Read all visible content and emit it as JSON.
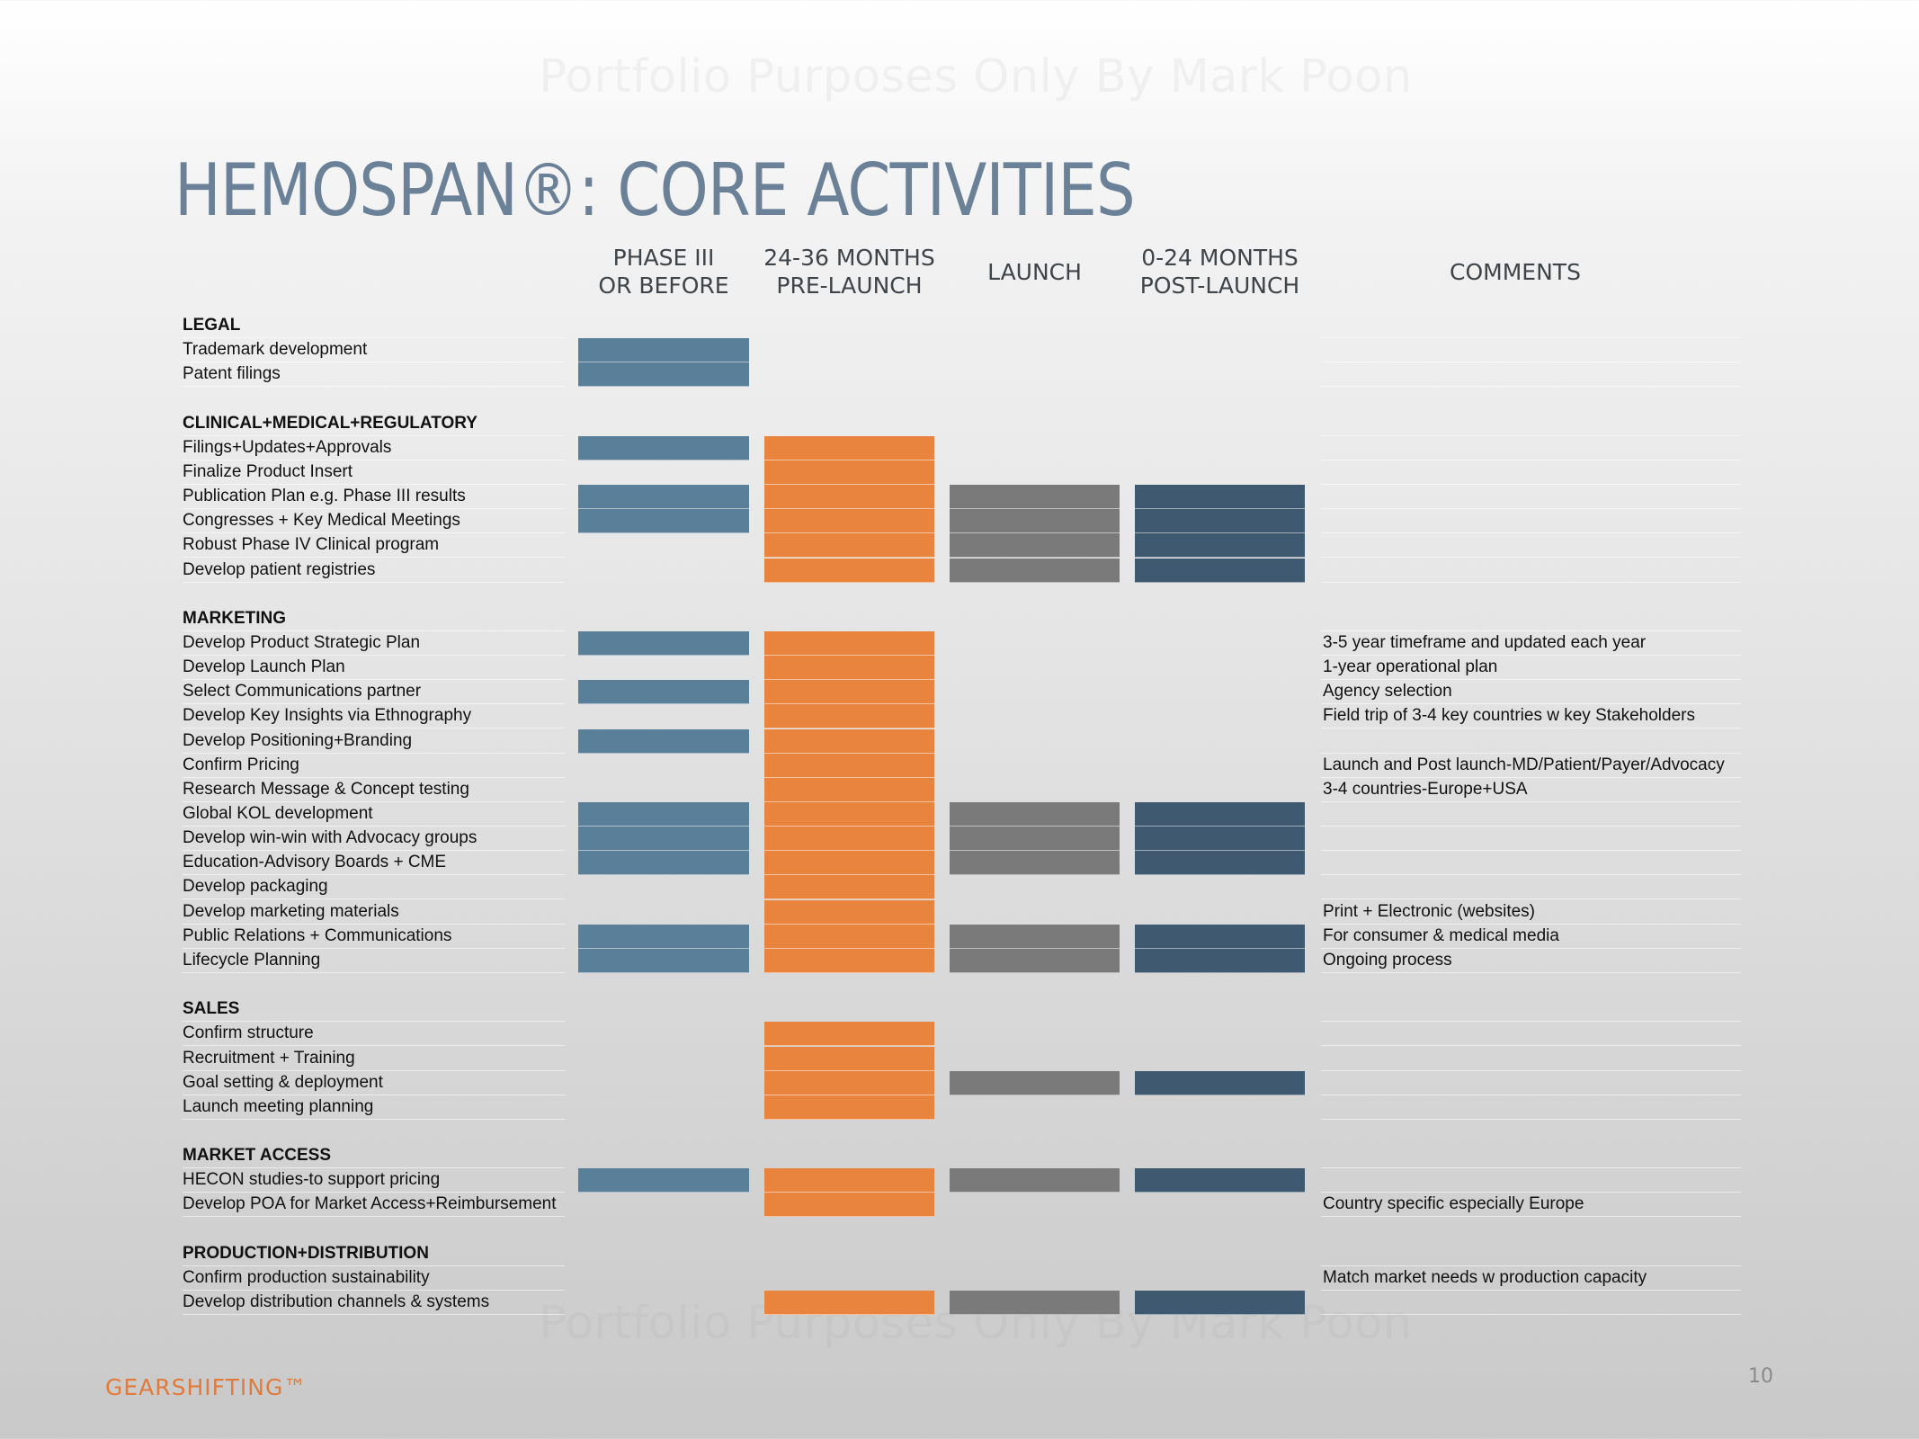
{
  "watermark": "Portfolio Purposes Only By Mark Poon",
  "title": "HEMOSPAN®: CORE ACTIVITIES",
  "columns": [
    {
      "key": "phase3",
      "label": "PHASE III\nOR BEFORE"
    },
    {
      "key": "prelaunch",
      "label": "24-36 MONTHS\nPRE-LAUNCH"
    },
    {
      "key": "launch",
      "label": "LAUNCH"
    },
    {
      "key": "post",
      "label": "0-24 MONTHS\nPOST-LAUNCH"
    },
    {
      "key": "comments",
      "label": "COMMENTS"
    }
  ],
  "colors": {
    "phase3": "#5a7f99",
    "prelaunch": "#e8843d",
    "launch": "#7a7a7a",
    "post": "#3e5970",
    "brand": "#e07b3c",
    "title": "#6b8197"
  },
  "rows": [
    {
      "type": "section",
      "label": "LEGAL"
    },
    {
      "label": "Trademark development",
      "phases": [
        "phase3"
      ]
    },
    {
      "label": "Patent filings",
      "phases": [
        "phase3"
      ]
    },
    {
      "type": "spacer"
    },
    {
      "type": "section",
      "label": "CLINICAL+MEDICAL+REGULATORY"
    },
    {
      "label": "Filings+Updates+Approvals",
      "phases": [
        "phase3",
        "prelaunch"
      ]
    },
    {
      "label": "Finalize Product Insert",
      "phases": [
        "prelaunch"
      ]
    },
    {
      "label": "Publication Plan e.g. Phase III results",
      "phases": [
        "phase3",
        "prelaunch",
        "launch",
        "post"
      ]
    },
    {
      "label": "Congresses + Key Medical Meetings",
      "phases": [
        "phase3",
        "prelaunch",
        "launch",
        "post"
      ]
    },
    {
      "label": "Robust Phase IV Clinical program",
      "phases": [
        "prelaunch",
        "launch",
        "post"
      ]
    },
    {
      "label": "Develop patient registries",
      "phases": [
        "prelaunch",
        "launch",
        "post"
      ]
    },
    {
      "type": "spacer"
    },
    {
      "type": "section",
      "label": "MARKETING"
    },
    {
      "label": "Develop Product Strategic Plan",
      "phases": [
        "phase3",
        "prelaunch"
      ],
      "comment": "3-5 year timeframe and updated each year"
    },
    {
      "label": "Develop Launch Plan",
      "phases": [
        "prelaunch"
      ],
      "comment": "1-year operational plan"
    },
    {
      "label": "Select Communications partner",
      "phases": [
        "phase3",
        "prelaunch"
      ],
      "comment": "Agency selection"
    },
    {
      "label": "Develop Key Insights via Ethnography",
      "phases": [
        "prelaunch"
      ],
      "comment": "Field trip of 3-4 key countries w key Stakeholders"
    },
    {
      "label": "Develop Positioning+Branding",
      "phases": [
        "phase3",
        "prelaunch"
      ]
    },
    {
      "label": "Confirm Pricing",
      "phases": [
        "prelaunch"
      ],
      "comment": "Launch and Post launch-MD/Patient/Payer/Advocacy"
    },
    {
      "label": "Research Message & Concept testing",
      "phases": [
        "prelaunch"
      ],
      "comment": "3-4 countries-Europe+USA"
    },
    {
      "label": "Global KOL development",
      "phases": [
        "phase3",
        "prelaunch",
        "launch",
        "post"
      ]
    },
    {
      "label": "Develop win-win with Advocacy groups",
      "phases": [
        "phase3",
        "prelaunch",
        "launch",
        "post"
      ]
    },
    {
      "label": "Education-Advisory Boards + CME",
      "phases": [
        "phase3",
        "prelaunch",
        "launch",
        "post"
      ]
    },
    {
      "label": "Develop packaging",
      "phases": [
        "prelaunch"
      ]
    },
    {
      "label": "Develop marketing materials",
      "phases": [
        "prelaunch"
      ],
      "comment": "Print + Electronic (websites)"
    },
    {
      "label": "Public Relations + Communications",
      "phases": [
        "phase3",
        "prelaunch",
        "launch",
        "post"
      ],
      "comment": "For consumer & medical media"
    },
    {
      "label": "Lifecycle Planning",
      "phases": [
        "phase3",
        "prelaunch",
        "launch",
        "post"
      ],
      "comment": "Ongoing process"
    },
    {
      "type": "spacer"
    },
    {
      "type": "section",
      "label": "SALES"
    },
    {
      "label": "Confirm structure",
      "phases": [
        "prelaunch"
      ]
    },
    {
      "label": "Recruitment + Training",
      "phases": [
        "prelaunch"
      ]
    },
    {
      "label": "Goal setting & deployment",
      "phases": [
        "prelaunch",
        "launch",
        "post"
      ]
    },
    {
      "label": "Launch meeting planning",
      "phases": [
        "prelaunch"
      ]
    },
    {
      "type": "spacer"
    },
    {
      "type": "section",
      "label": "MARKET ACCESS"
    },
    {
      "label": "HECON studies-to support pricing",
      "phases": [
        "phase3",
        "prelaunch",
        "launch",
        "post"
      ]
    },
    {
      "label": "Develop POA for Market Access+Reimbursement",
      "phases": [
        "prelaunch"
      ],
      "comment": "Country specific especially Europe"
    },
    {
      "type": "spacer"
    },
    {
      "type": "section",
      "label": "PRODUCTION+DISTRIBUTION"
    },
    {
      "label": "Confirm production sustainability",
      "phases": [],
      "comment": "Match market needs w production capacity"
    },
    {
      "label": "Develop distribution channels & systems",
      "phases": [
        "prelaunch",
        "launch",
        "post"
      ]
    }
  ],
  "footer": {
    "brand": "GEARSHIFTING™",
    "page": "10"
  }
}
